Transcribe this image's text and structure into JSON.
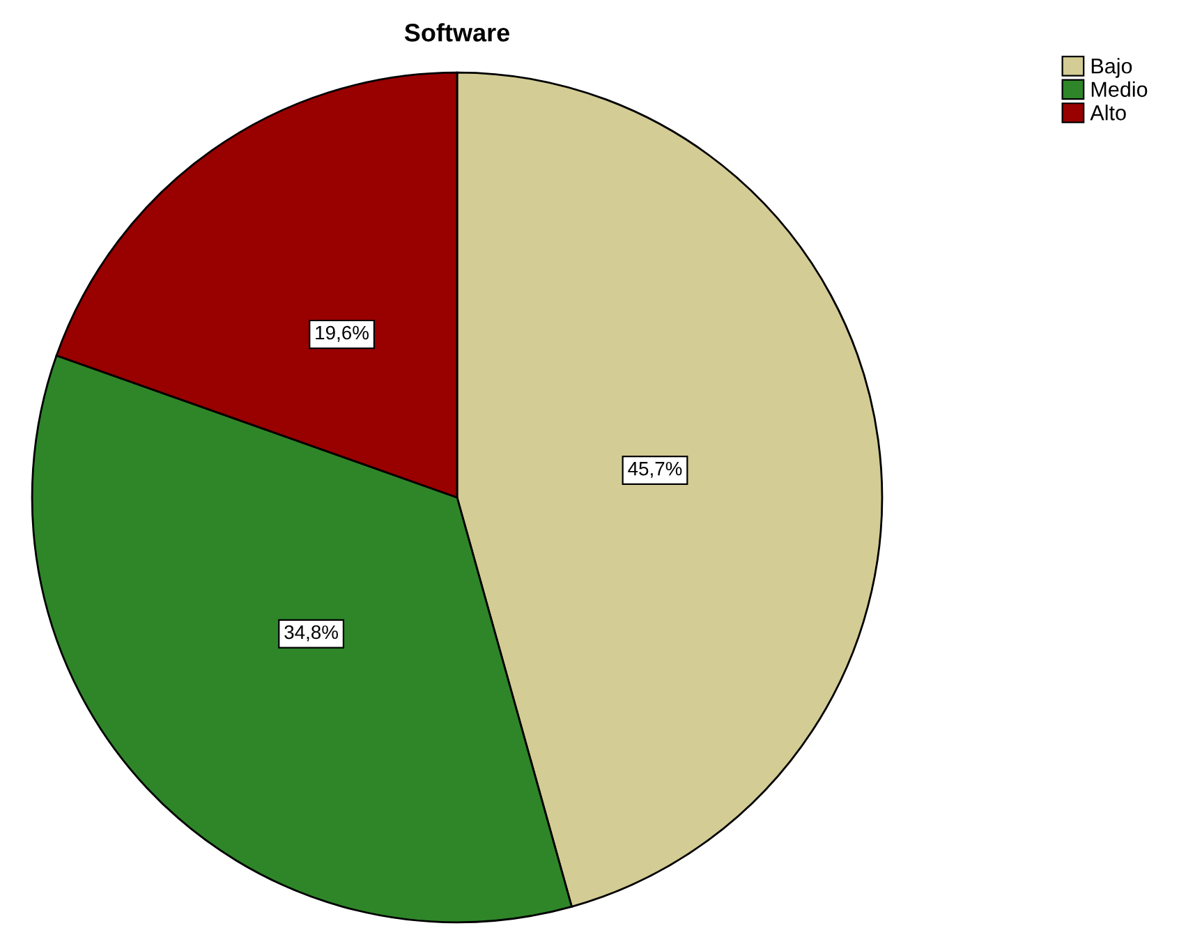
{
  "chart_data": {
    "type": "pie",
    "title": "Software",
    "categories": [
      "Bajo",
      "Medio",
      "Alto"
    ],
    "values": [
      45.7,
      34.8,
      19.6
    ],
    "value_labels": [
      "45,7%",
      "34,8%",
      "19,6%"
    ],
    "colors": [
      "#d3cc94",
      "#2e8629",
      "#990000"
    ],
    "legend": "top right"
  }
}
